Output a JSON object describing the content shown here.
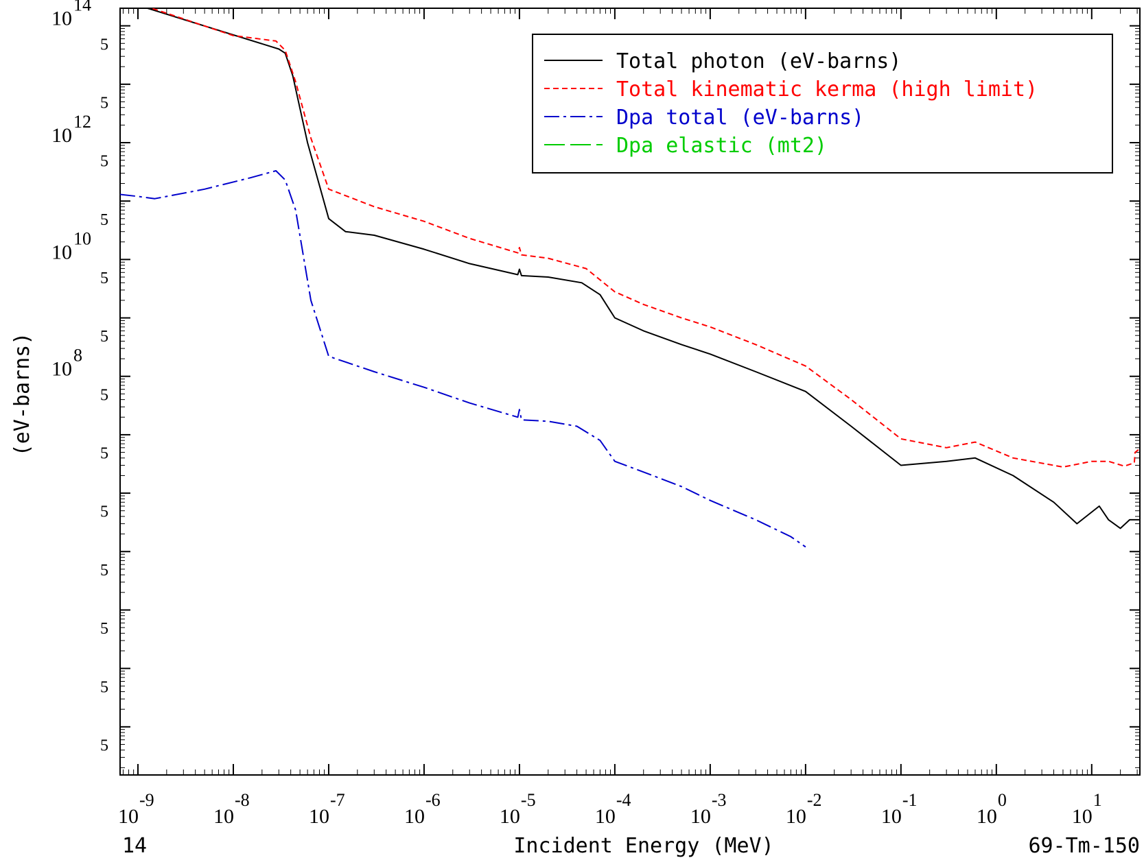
{
  "chart_data": {
    "type": "line",
    "title": "",
    "xlabel": "Incident Energy (MeV)",
    "ylabel": "(eV-barns)",
    "footer_left": "14",
    "footer_right": "69-Tm-150",
    "x_scale": "log",
    "y_scale": "log",
    "xlim": [
      6.5e-10,
      32
    ],
    "ylim": [
      15,
      200000000000000.0
    ],
    "x_ticks": [
      {
        "value": 1e-09,
        "label": "10",
        "exp": "-9"
      },
      {
        "value": 1e-08,
        "label": "10",
        "exp": "-8"
      },
      {
        "value": 1e-07,
        "label": "10",
        "exp": "-7"
      },
      {
        "value": 1e-06,
        "label": "10",
        "exp": "-6"
      },
      {
        "value": 1e-05,
        "label": "10",
        "exp": "-5"
      },
      {
        "value": 0.0001,
        "label": "10",
        "exp": "-4"
      },
      {
        "value": 0.001,
        "label": "10",
        "exp": "-3"
      },
      {
        "value": 0.01,
        "label": "10",
        "exp": "-2"
      },
      {
        "value": 0.1,
        "label": "10",
        "exp": "-1"
      },
      {
        "value": 1,
        "label": "10",
        "exp": "0"
      },
      {
        "value": 10,
        "label": "10",
        "exp": "1"
      }
    ],
    "y_ticks": [
      {
        "value": 100000000000000.0,
        "label": "10",
        "exp": "14"
      },
      {
        "value": 1000000000000.0,
        "label": "10",
        "exp": "12"
      },
      {
        "value": 10000000000.0,
        "label": "10",
        "exp": "10"
      },
      {
        "value": 100000000.0,
        "label": "10",
        "exp": "8"
      }
    ],
    "y_five_ticks": [
      50000000000000.0,
      5000000000000.0,
      500000000000.0,
      50000000000.0,
      5000000000.0,
      500000000.0,
      50000000.0,
      5000000.0,
      500000.0,
      50000.0,
      5000.0,
      500.0,
      50.0
    ],
    "five_label": "5",
    "legend_position": "top-right",
    "series": [
      {
        "name": "Total photon (eV-barns)",
        "color": "#000000",
        "dash": "solid",
        "points": [
          [
            6.5e-10,
            280000000000000.0
          ],
          [
            3e-08,
            40000000000000.0
          ],
          [
            3.5e-08,
            34000000000000.0
          ],
          [
            4.2e-08,
            14000000000000.0
          ],
          [
            6e-08,
            1000000000000.0
          ],
          [
            1e-07,
            50000000000.0
          ],
          [
            1.5e-07,
            30000000000.0
          ],
          [
            3e-07,
            26000000000.0
          ],
          [
            1e-06,
            15000000000.0
          ],
          [
            3e-06,
            8500000000.0
          ],
          [
            9.6e-06,
            5500000000.0
          ],
          [
            1e-05,
            6800000000.0
          ],
          [
            1.05e-05,
            5300000000.0
          ],
          [
            2e-05,
            5000000000.0
          ],
          [
            4.5e-05,
            4000000000.0
          ],
          [
            7e-05,
            2500000000.0
          ],
          [
            0.0001,
            1000000000.0
          ],
          [
            0.0002,
            600000000.0
          ],
          [
            0.0005,
            350000000.0
          ],
          [
            0.001,
            240000000.0
          ],
          [
            0.003,
            120000000.0
          ],
          [
            0.01,
            55000000.0
          ],
          [
            0.03,
            14000000.0
          ],
          [
            0.1,
            3000000.0
          ],
          [
            0.3,
            3500000.0
          ],
          [
            0.6,
            4000000.0
          ],
          [
            1.5,
            2000000.0
          ],
          [
            4.0,
            700000.0
          ],
          [
            7.0,
            300000.0
          ],
          [
            12.0,
            600000.0
          ],
          [
            15.0,
            350000.0
          ],
          [
            20.0,
            250000.0
          ],
          [
            25.0,
            350000.0
          ],
          [
            32.0,
            350000.0
          ]
        ]
      },
      {
        "name": "Total kinematic kerma (high limit)",
        "color": "#ff0000",
        "dash": "8,5",
        "points": [
          [
            6.5e-10,
            350000000000000.0
          ],
          [
            1e-09,
            240000000000000.0
          ],
          [
            1e-08,
            68000000000000.0
          ],
          [
            2.8e-08,
            55000000000000.0
          ],
          [
            3.5e-08,
            38000000000000.0
          ],
          [
            4.5e-08,
            11000000000000.0
          ],
          [
            6.5e-08,
            1200000000000.0
          ],
          [
            1e-07,
            160000000000.0
          ],
          [
            3e-07,
            80000000000.0
          ],
          [
            1e-06,
            45000000000.0
          ],
          [
            3e-06,
            23000000000.0
          ],
          [
            9.6e-06,
            13000000000.0
          ],
          [
            1e-05,
            16000000000.0
          ],
          [
            1.05e-05,
            12000000000.0
          ],
          [
            2e-05,
            10500000000.0
          ],
          [
            5e-05,
            7000000000.0
          ],
          [
            0.0001,
            2800000000.0
          ],
          [
            0.0002,
            1700000000.0
          ],
          [
            0.0005,
            1000000000.0
          ],
          [
            0.001,
            700000000.0
          ],
          [
            0.003,
            350000000.0
          ],
          [
            0.01,
            150000000.0
          ],
          [
            0.03,
            40000000.0
          ],
          [
            0.1,
            8500000.0
          ],
          [
            0.3,
            6000000.0
          ],
          [
            0.6,
            7500000.0
          ],
          [
            1.5,
            4000000.0
          ],
          [
            5.0,
            2800000.0
          ],
          [
            10.0,
            3500000.0
          ],
          [
            15.0,
            3500000.0
          ],
          [
            22.0,
            2900000.0
          ],
          [
            28.0,
            3300000.0
          ],
          [
            28.5,
            5000000.0
          ],
          [
            32.0,
            5800000.0
          ]
        ]
      },
      {
        "name": "Dpa total (eV-barns)",
        "color": "#0000cc",
        "dash": "22,6,4,6",
        "points": [
          [
            6.5e-10,
            130000000000.0
          ],
          [
            1e-09,
            120000000000.0
          ],
          [
            1.5e-09,
            110000000000.0
          ],
          [
            5e-09,
            160000000000.0
          ],
          [
            1.5e-08,
            250000000000.0
          ],
          [
            2.8e-08,
            330000000000.0
          ],
          [
            3.5e-08,
            230000000000.0
          ],
          [
            4.5e-08,
            70000000000.0
          ],
          [
            6.5e-08,
            2000000000.0
          ],
          [
            1e-07,
            220000000.0
          ],
          [
            3e-07,
            120000000.0
          ],
          [
            1e-06,
            65000000.0
          ],
          [
            3e-06,
            35000000.0
          ],
          [
            9.6e-06,
            20000000.0
          ],
          [
            1e-05,
            27000000.0
          ],
          [
            1.05e-05,
            18000000.0
          ],
          [
            2e-05,
            17000000.0
          ],
          [
            4e-05,
            14000000.0
          ],
          [
            7e-05,
            8000000.0
          ],
          [
            0.0001,
            3500000.0
          ],
          [
            0.0002,
            2300000.0
          ],
          [
            0.0005,
            1300000.0
          ],
          [
            0.001,
            750000.0
          ],
          [
            0.003,
            350000.0
          ],
          [
            0.007,
            180000.0
          ],
          [
            0.01,
            120000.0
          ]
        ]
      },
      {
        "name": "Dpa elastic (mt2)",
        "color": "#00cc00",
        "dash": "30,8",
        "points": []
      }
    ]
  }
}
